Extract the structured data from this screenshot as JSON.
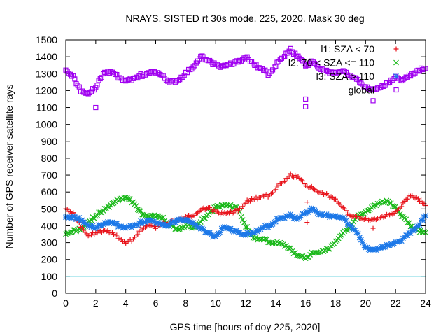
{
  "chart_data": {
    "type": "scatter",
    "title": "NRAYS. SISTED rt 30s mode. 225, 2020. Mask 30 deg",
    "xlabel": "GPS time [hours of doy 225, 2020]",
    "ylabel": "Number of GPS receiver-satellite rays",
    "xlim": [
      0,
      24
    ],
    "ylim": [
      0,
      1500
    ],
    "x_ticks": [
      0,
      2,
      4,
      6,
      8,
      10,
      12,
      14,
      16,
      18,
      20,
      22,
      24
    ],
    "y_ticks": [
      0,
      100,
      200,
      300,
      400,
      500,
      600,
      700,
      800,
      900,
      1000,
      1100,
      1200,
      1300,
      1400,
      1500
    ],
    "grid": false,
    "legend_position": "top-right",
    "reference_line": {
      "y": 100,
      "color": "#40c8d8"
    },
    "series": [
      {
        "name": "l1: SZA < 70",
        "marker": "plus",
        "color": "#e8141c",
        "x": [
          0,
          0.5,
          1,
          1.5,
          2,
          2.5,
          3,
          3.5,
          4,
          4.5,
          5,
          5.5,
          6,
          6.5,
          7,
          7.5,
          8,
          8.5,
          9,
          9.5,
          10,
          10.5,
          11,
          11.5,
          12,
          12.5,
          13,
          13.5,
          14,
          14.5,
          15,
          15.5,
          16,
          16.5,
          17,
          17.5,
          18,
          18.5,
          19,
          19.5,
          20,
          20.5,
          21,
          21.5,
          22,
          22.5,
          23,
          23.5,
          24
        ],
        "values": [
          510,
          470,
          400,
          340,
          360,
          370,
          360,
          330,
          300,
          320,
          380,
          400,
          390,
          410,
          420,
          440,
          450,
          460,
          490,
          510,
          480,
          470,
          480,
          490,
          540,
          560,
          570,
          580,
          620,
          660,
          700,
          690,
          640,
          620,
          600,
          580,
          550,
          500,
          460,
          450,
          440,
          430,
          450,
          470,
          480,
          530,
          580,
          560,
          520
        ],
        "outliers": [
          [
            16.1,
            540
          ],
          [
            16.1,
            420
          ],
          [
            20.5,
            385
          ]
        ]
      },
      {
        "name": "l2: 70 < SZA <= 110",
        "marker": "cross",
        "color": "#18b818",
        "x": [
          0,
          0.5,
          1,
          1.5,
          2,
          2.5,
          3,
          3.5,
          4,
          4.5,
          5,
          5.5,
          6,
          6.5,
          7,
          7.5,
          8,
          8.5,
          9,
          9.5,
          10,
          10.5,
          11,
          11.5,
          12,
          12.5,
          13,
          13.5,
          14,
          14.5,
          15,
          15.5,
          16,
          16.5,
          17,
          17.5,
          18,
          18.5,
          19,
          19.5,
          20,
          20.5,
          21,
          21.5,
          22,
          22.5,
          23,
          23.5,
          24
        ],
        "values": [
          360,
          370,
          380,
          420,
          460,
          490,
          520,
          555,
          570,
          540,
          480,
          450,
          460,
          440,
          400,
          380,
          400,
          390,
          420,
          470,
          510,
          520,
          520,
          500,
          400,
          330,
          320,
          310,
          300,
          290,
          260,
          220,
          210,
          240,
          250,
          260,
          300,
          350,
          400,
          460,
          480,
          510,
          540,
          550,
          510,
          450,
          400,
          370,
          360
        ],
        "outliers": []
      },
      {
        "name": "l3: SZA > 110",
        "marker": "star",
        "color": "#1c78e8",
        "x": [
          0,
          0.5,
          1,
          1.5,
          2,
          2.5,
          3,
          3.5,
          4,
          4.5,
          5,
          5.5,
          6,
          6.5,
          7,
          7.5,
          8,
          8.5,
          9,
          9.5,
          10,
          10.5,
          11,
          11.5,
          12,
          12.5,
          13,
          13.5,
          14,
          14.5,
          15,
          15.5,
          16,
          16.5,
          17,
          17.5,
          18,
          18.5,
          19,
          19.5,
          20,
          20.5,
          21,
          21.5,
          22,
          22.5,
          23,
          23.5,
          24
        ],
        "values": [
          460,
          450,
          440,
          400,
          390,
          410,
          420,
          400,
          390,
          400,
          420,
          430,
          420,
          400,
          410,
          440,
          430,
          420,
          380,
          360,
          330,
          390,
          380,
          360,
          350,
          360,
          380,
          400,
          430,
          450,
          460,
          440,
          480,
          500,
          470,
          460,
          450,
          440,
          400,
          350,
          270,
          250,
          270,
          290,
          300,
          320,
          360,
          400,
          460
        ],
        "outliers": []
      },
      {
        "name": "global",
        "marker": "square",
        "color": "#a000f0",
        "x": [
          0,
          0.5,
          1,
          1.5,
          2,
          2.5,
          3,
          3.5,
          4,
          4.5,
          5,
          5.5,
          6,
          6.5,
          7,
          7.5,
          8,
          8.5,
          9,
          9.5,
          10,
          10.5,
          11,
          11.5,
          12,
          12.5,
          13,
          13.5,
          14,
          14.5,
          15,
          15.5,
          16,
          16.5,
          17,
          17.5,
          18,
          18.5,
          19,
          19.5,
          20,
          20.5,
          21,
          21.5,
          22,
          22.5,
          23,
          23.5,
          24
        ],
        "values": [
          1330,
          1280,
          1200,
          1180,
          1220,
          1300,
          1310,
          1280,
          1260,
          1270,
          1290,
          1300,
          1310,
          1280,
          1250,
          1260,
          1300,
          1340,
          1400,
          1380,
          1350,
          1340,
          1360,
          1370,
          1400,
          1360,
          1330,
          1300,
          1350,
          1400,
          1440,
          1400,
          1350,
          1370,
          1330,
          1310,
          1300,
          1310,
          1290,
          1260,
          1220,
          1200,
          1220,
          1250,
          1280,
          1260,
          1290,
          1320,
          1330
        ],
        "outliers": [
          [
            2,
            1100
          ],
          [
            16,
            1105
          ],
          [
            16,
            1150
          ],
          [
            20.5,
            1140
          ]
        ]
      }
    ]
  }
}
